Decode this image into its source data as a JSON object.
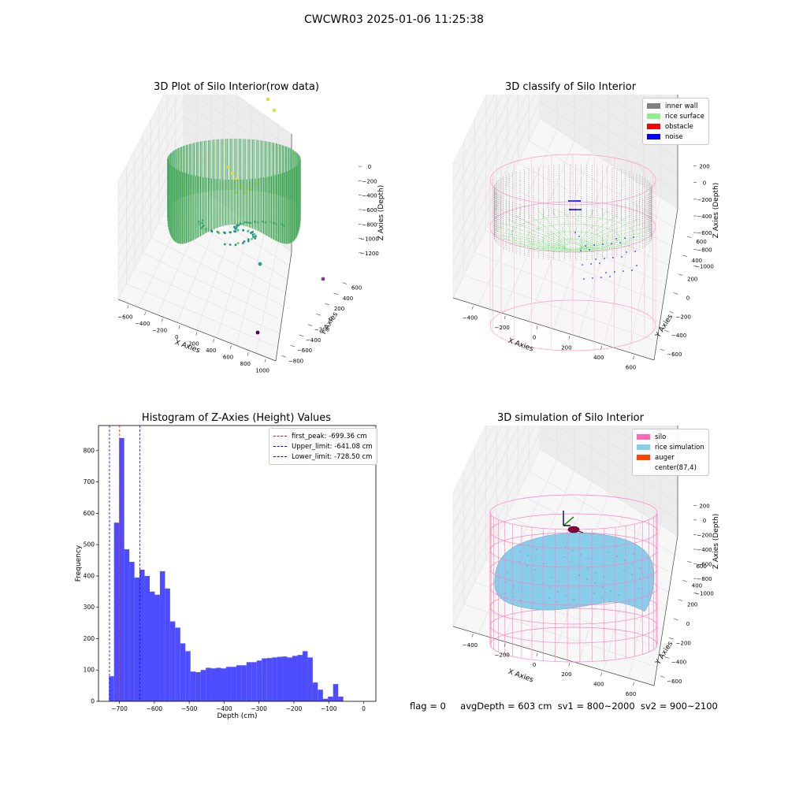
{
  "suptitle": "CWCWR03 2025-01-06 11:25:38",
  "footer": {
    "flag": "flag = 0",
    "avg": "avgDepth = 603 cm",
    "sv1": "sv1 = 800~2000",
    "sv2": "sv2 = 900~2100"
  },
  "colors": {
    "inner_wall": "#808080",
    "rice_surface": "#90ee90",
    "obstacle": "#ff0000",
    "noise": "#0000ff",
    "silo": "#ff69b4",
    "rice_simulation": "#87ceeb",
    "auger": "#ff4500",
    "hist_bar": "#4d4dff"
  },
  "chart_data": [
    {
      "type": "scatter3d",
      "title": "3D Plot of Silo Interior(row data)",
      "xlabel": "X Axies",
      "ylabel": "Y Axies",
      "zlabel": "Z Axies (Depth)",
      "x_ticks": [
        "−600",
        "−400",
        "−200",
        "0",
        "200",
        "400",
        "600",
        "800",
        "1000"
      ],
      "y_ticks": [
        "−800",
        "−600",
        "−400",
        "−200",
        "0",
        "200",
        "400",
        "600"
      ],
      "z_ticks": [
        "0",
        "−200",
        "−400",
        "−600",
        "−800",
        "−1000",
        "−1200"
      ],
      "xlim": [
        -650,
        1050
      ],
      "ylim": [
        -900,
        700
      ],
      "zlim": [
        -1300,
        50
      ],
      "colormap": "viridis"
    },
    {
      "type": "scatter3d",
      "title": "3D classify of Silo Interior",
      "xlabel": "X Axies",
      "ylabel": "Y Axies",
      "zlabel": "Z Axies (Depth)",
      "x_ticks": [
        "−400",
        "−200",
        "0",
        "200",
        "400",
        "600"
      ],
      "y_ticks": [
        "−600",
        "−400",
        "−200",
        "0",
        "200",
        "400",
        "600"
      ],
      "z_ticks": [
        "200",
        "0",
        "−200",
        "−400",
        "−600",
        "−800",
        "−1000"
      ],
      "legend": [
        "inner wall",
        "rice surface",
        "obstacle",
        "noise"
      ],
      "legend_position": "upper right"
    },
    {
      "type": "bar",
      "title": "Histogram of Z-Axies (Height) Values",
      "xlabel": "Depth (cm)",
      "ylabel": "Frequency",
      "x_ticks": [
        "−700",
        "−600",
        "−500",
        "−400",
        "−300",
        "−200",
        "−100",
        "0"
      ],
      "x_tick_values": [
        -700,
        -600,
        -500,
        -400,
        -300,
        -200,
        -100,
        0
      ],
      "y_ticks": [
        "0",
        "100",
        "200",
        "300",
        "400",
        "500",
        "600",
        "700",
        "800"
      ],
      "y_tick_values": [
        0,
        100,
        200,
        300,
        400,
        500,
        600,
        700,
        800
      ],
      "xlim": [
        -760,
        35
      ],
      "ylim": [
        0,
        880
      ],
      "bin_start": -730,
      "bin_width": 14.6,
      "values": [
        80,
        570,
        840,
        485,
        445,
        395,
        420,
        400,
        350,
        340,
        415,
        360,
        255,
        235,
        185,
        160,
        95,
        93,
        100,
        107,
        105,
        107,
        105,
        110,
        110,
        115,
        115,
        125,
        125,
        130,
        137,
        138,
        140,
        142,
        143,
        140,
        145,
        148,
        160,
        140,
        60,
        37,
        8,
        15,
        55,
        15
      ],
      "lines": [
        {
          "label": "first_peak: -699.36 cm",
          "x": -699.36,
          "color": "#ff0000"
        },
        {
          "label": "Upper_limit: -641.08 cm",
          "x": -641.08,
          "color": "#0000ff"
        },
        {
          "label": "Lower_limit: -728.50 cm",
          "x": -728.5,
          "color": "#0000ff"
        }
      ],
      "legend_position": "upper right"
    },
    {
      "type": "surface3d",
      "title": "3D simulation of Silo Interior",
      "xlabel": "X Axies",
      "ylabel": "Y Axies",
      "zlabel": "Z Axies (Depth)",
      "x_ticks": [
        "−400",
        "−200",
        "0",
        "200",
        "400",
        "600"
      ],
      "y_ticks": [
        "−600",
        "−400",
        "−200",
        "0",
        "200",
        "400",
        "600"
      ],
      "z_ticks": [
        "200",
        "0",
        "−200",
        "−400",
        "−600",
        "−800",
        "−1000"
      ],
      "legend": [
        "silo",
        "rice simulation",
        "auger",
        "center(87,4)"
      ],
      "legend_position": "upper right"
    }
  ]
}
